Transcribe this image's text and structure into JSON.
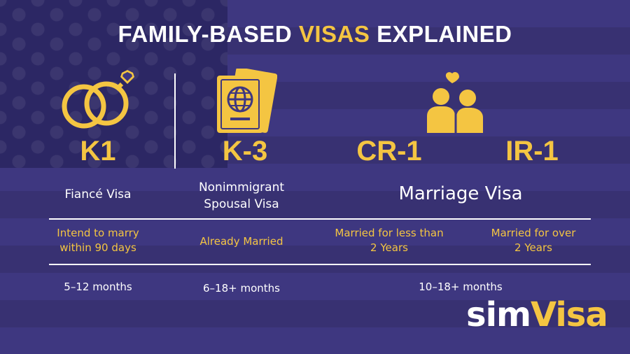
{
  "header": {
    "title_prefix": "FAMILY-BASED ",
    "title_highlight": "VISAS",
    "title_suffix": " EXPLAINED"
  },
  "visas": {
    "k1": {
      "code": "K1",
      "name": "Fiancé Visa",
      "requirement_line1": "Intend to marry",
      "requirement_line2": "within 90 days",
      "timeline": "5–12 months",
      "icon": "rings-icon"
    },
    "k3": {
      "code": "K-3",
      "name_line1": "Nonimmigrant",
      "name_line2": "Spousal Visa",
      "requirement": "Already Married",
      "timeline": "6–18+ months",
      "icon": "passport-icon"
    },
    "marriage": {
      "name": "Marriage Visa",
      "timeline": "10–18+ months",
      "icon": "couple-icon"
    },
    "cr1": {
      "code": "CR-1",
      "requirement_line1": "Married for less than",
      "requirement_line2": "2 Years"
    },
    "ir1": {
      "code": "IR-1",
      "requirement_line1": "Married for over",
      "requirement_line2": "2 Years"
    }
  },
  "brand": {
    "logo_part1": "sim",
    "logo_part2": "Visa"
  },
  "colors": {
    "accent": "#f4c542",
    "background": "#3e3780",
    "text": "#ffffff"
  }
}
